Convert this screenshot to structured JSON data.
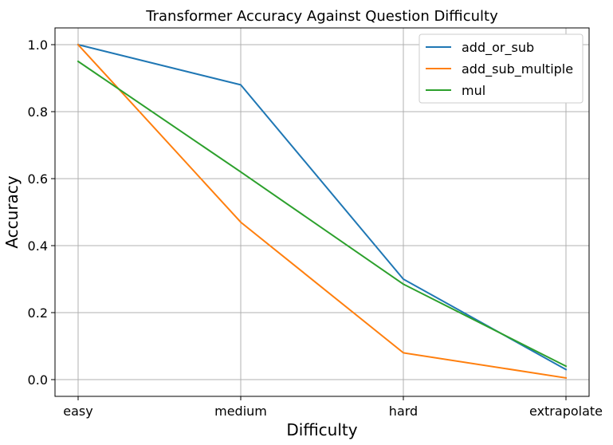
{
  "chart_data": {
    "type": "line",
    "title": "Transformer Accuracy Against Question Difficulty",
    "xlabel": "Difficulty",
    "ylabel": "Accuracy",
    "categories": [
      "easy",
      "medium",
      "hard",
      "extrapolate"
    ],
    "ylim": [
      -0.05,
      1.05
    ],
    "yticks": [
      "0.0",
      "0.2",
      "0.4",
      "0.6",
      "0.8",
      "1.0"
    ],
    "grid": true,
    "legend_position": "top-right",
    "series": [
      {
        "name": "add_or_sub",
        "color": "#1f77b4",
        "values": [
          1.0,
          0.88,
          0.3,
          0.03
        ]
      },
      {
        "name": "add_sub_multiple",
        "color": "#ff7f0e",
        "values": [
          1.0,
          0.47,
          0.08,
          0.005
        ]
      },
      {
        "name": "mul",
        "color": "#2ca02c",
        "values": [
          0.95,
          0.62,
          0.285,
          0.04
        ]
      }
    ]
  }
}
